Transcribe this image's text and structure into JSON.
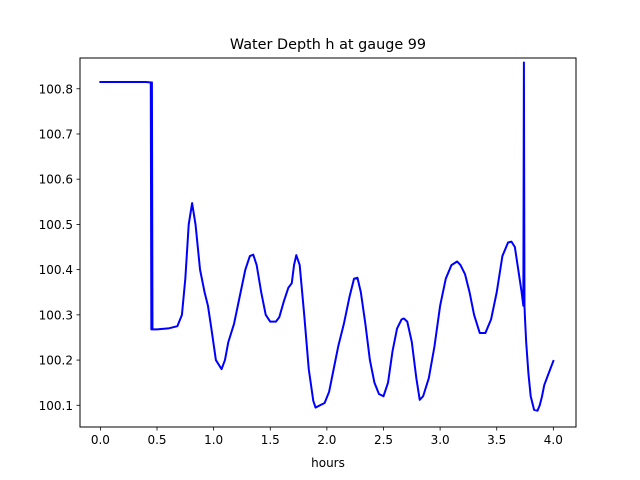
{
  "chart_data": {
    "type": "line",
    "title": "Water Depth h at gauge 99",
    "xlabel": "hours",
    "ylabel": "",
    "xlim": [
      -0.18,
      4.2
    ],
    "ylim": [
      100.052,
      100.868
    ],
    "xticks": [
      0.0,
      0.5,
      1.0,
      1.5,
      2.0,
      2.5,
      3.0,
      3.5,
      4.0
    ],
    "xtick_labels": [
      "0.0",
      "0.5",
      "1.0",
      "1.5",
      "2.0",
      "2.5",
      "3.0",
      "3.5",
      "4.0"
    ],
    "yticks": [
      100.1,
      100.2,
      100.3,
      100.4,
      100.5,
      100.6,
      100.7,
      100.8
    ],
    "ytick_labels": [
      "100.1",
      "100.2",
      "100.3",
      "100.4",
      "100.5",
      "100.6",
      "100.7",
      "100.8"
    ],
    "grid": false,
    "legend": "none",
    "series": [
      {
        "color": "#0000ff",
        "x": [
          0.0,
          0.2,
          0.4,
          0.44,
          0.445,
          0.45,
          0.455,
          0.46,
          0.5,
          0.6,
          0.68,
          0.72,
          0.75,
          0.78,
          0.81,
          0.84,
          0.88,
          0.92,
          0.95,
          0.98,
          1.02,
          1.07,
          1.1,
          1.13,
          1.18,
          1.23,
          1.28,
          1.32,
          1.35,
          1.38,
          1.42,
          1.46,
          1.5,
          1.55,
          1.58,
          1.62,
          1.66,
          1.69,
          1.71,
          1.73,
          1.76,
          1.8,
          1.84,
          1.88,
          1.9,
          1.94,
          1.98,
          2.02,
          2.06,
          2.1,
          2.15,
          2.2,
          2.24,
          2.27,
          2.3,
          2.34,
          2.38,
          2.42,
          2.46,
          2.5,
          2.54,
          2.58,
          2.62,
          2.66,
          2.68,
          2.71,
          2.75,
          2.79,
          2.82,
          2.85,
          2.9,
          2.95,
          3.0,
          3.05,
          3.1,
          3.15,
          3.18,
          3.22,
          3.26,
          3.3,
          3.35,
          3.4,
          3.45,
          3.5,
          3.55,
          3.6,
          3.63,
          3.66,
          3.69,
          3.72,
          3.735,
          3.74,
          3.745,
          3.75,
          3.76,
          3.78,
          3.8,
          3.83,
          3.86,
          3.88,
          3.9,
          3.92,
          3.95,
          4.0
        ],
        "y": [
          100.815,
          100.815,
          100.815,
          100.814,
          100.814,
          100.268,
          100.814,
          100.268,
          100.268,
          100.27,
          100.275,
          100.3,
          100.38,
          100.5,
          100.547,
          100.5,
          100.4,
          100.35,
          100.32,
          100.27,
          100.2,
          100.18,
          100.2,
          100.24,
          100.28,
          100.34,
          100.4,
          100.43,
          100.433,
          100.41,
          100.35,
          100.3,
          100.285,
          100.285,
          100.295,
          100.33,
          100.36,
          100.37,
          100.41,
          100.432,
          100.41,
          100.3,
          100.18,
          100.11,
          100.095,
          100.1,
          100.105,
          100.13,
          100.18,
          100.23,
          100.28,
          100.34,
          100.38,
          100.382,
          100.35,
          100.28,
          100.2,
          100.15,
          100.125,
          100.12,
          100.15,
          100.22,
          100.27,
          100.29,
          100.292,
          100.285,
          100.24,
          100.16,
          100.112,
          100.12,
          100.16,
          100.23,
          100.32,
          100.38,
          100.41,
          100.418,
          100.41,
          100.39,
          100.35,
          100.3,
          100.26,
          100.26,
          100.29,
          100.35,
          100.43,
          100.46,
          100.462,
          100.45,
          100.4,
          100.35,
          100.32,
          100.858,
          100.32,
          100.29,
          100.24,
          100.17,
          100.12,
          100.09,
          100.088,
          100.1,
          100.12,
          100.145,
          100.165,
          100.198
        ]
      }
    ]
  }
}
